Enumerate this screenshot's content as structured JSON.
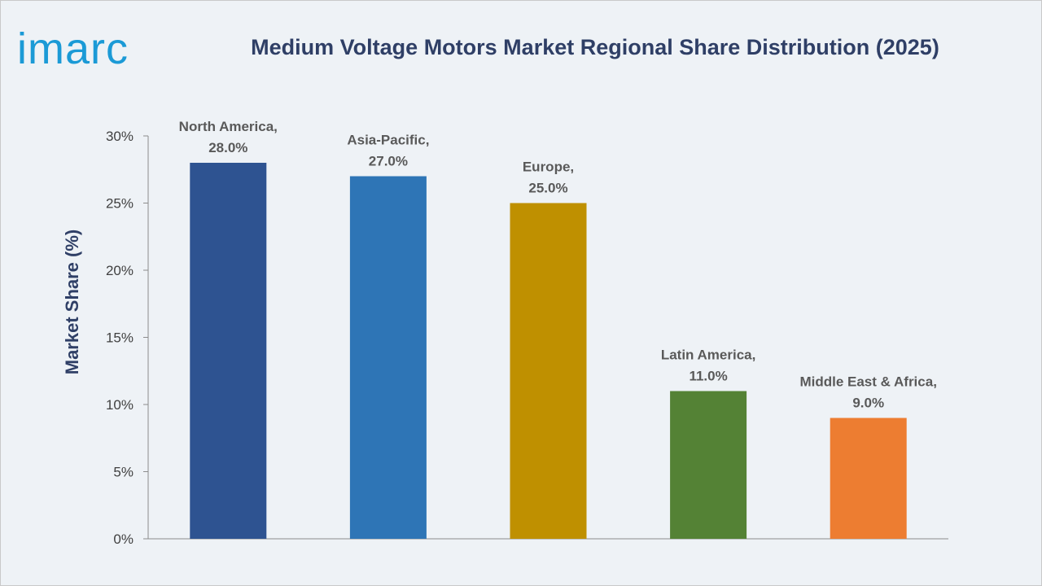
{
  "brand": {
    "logo_text": "imarc",
    "logo_color": "#1b9ad6"
  },
  "chart_data": {
    "type": "bar",
    "title": "Medium Voltage Motors Market Regional Share Distribution (2025)",
    "ylabel": "Market Share (%)",
    "xlabel": "",
    "categories": [
      "North America",
      "Asia-Pacific",
      "Europe",
      "Latin America",
      "Middle East & Africa"
    ],
    "values": [
      28.0,
      27.0,
      25.0,
      11.0,
      9.0
    ],
    "data_labels": [
      [
        "North America,",
        "28.0%"
      ],
      [
        "Asia-Pacific,",
        "27.0%"
      ],
      [
        "Europe,",
        "25.0%"
      ],
      [
        "Latin America,",
        "11.0%"
      ],
      [
        "Middle East & Africa,",
        "9.0%"
      ]
    ],
    "colors": [
      "#2e5391",
      "#2e75b6",
      "#bf9000",
      "#548235",
      "#ed7d31"
    ],
    "ylim": [
      0,
      30
    ],
    "yticks": [
      0,
      5,
      10,
      15,
      20,
      25,
      30
    ],
    "ytick_labels": [
      "0%",
      "5%",
      "10%",
      "15%",
      "20%",
      "25%",
      "30%"
    ],
    "grid": false,
    "legend": "none"
  }
}
